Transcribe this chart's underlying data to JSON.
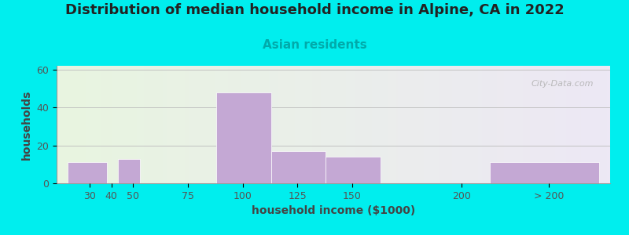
{
  "title": "Distribution of median household income in Alpine, CA in 2022",
  "subtitle": "Asian residents",
  "xlabel": "household income ($1000)",
  "ylabel": "households",
  "background_color": "#00EEEE",
  "plot_bg_left": "#e8f5e0",
  "plot_bg_right": "#ede8f5",
  "bar_color": "#c4a8d4",
  "categories": [
    "30",
    "40",
    "50",
    "75",
    "100",
    "125",
    "150",
    "200",
    "> 200"
  ],
  "values": [
    11,
    0,
    13,
    0,
    48,
    17,
    14,
    0,
    11
  ],
  "bar_lefts": [
    20,
    40,
    43,
    70,
    88,
    113,
    138,
    175,
    213
  ],
  "bar_widths": [
    18,
    1,
    10,
    1,
    25,
    25,
    25,
    1,
    50
  ],
  "xlim": [
    15,
    268
  ],
  "ylim": [
    0,
    62
  ],
  "yticks": [
    0,
    20,
    40,
    60
  ],
  "xtick_positions": [
    30,
    40,
    50,
    75,
    100,
    125,
    150,
    200,
    240
  ],
  "xtick_labels": [
    "30",
    "40",
    "50",
    "75",
    "100",
    "125",
    "150",
    "200",
    "> 200"
  ],
  "title_fontsize": 13,
  "subtitle_fontsize": 11,
  "subtitle_color": "#00aaaa",
  "axis_label_fontsize": 10,
  "tick_fontsize": 9,
  "watermark": "City-Data.com"
}
